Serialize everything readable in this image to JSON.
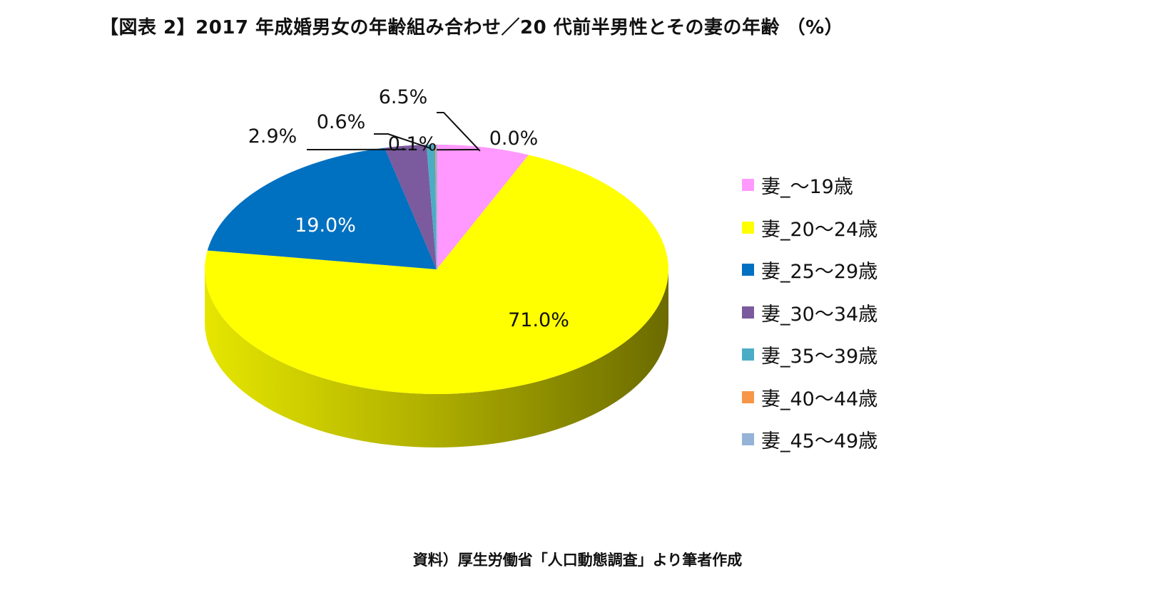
{
  "title": "【図表 2】2017 年成婚男女の年齢組み合わせ／20 代前半男性とその妻の年齢 （%）",
  "source": "資料）厚生労働省「人口動態調査」より筆者作成",
  "chart_data": {
    "type": "pie",
    "style": "3d-tilted",
    "legend_position": "right",
    "start_angle": "12 o'clock, clockwise",
    "slices": [
      {
        "label": "妻_～19歳",
        "value": 6.5,
        "label_text": "6.5%",
        "color": "#FF99FF"
      },
      {
        "label": "妻_20～24歳",
        "value": 71.0,
        "label_text": "71.0%",
        "color": "#FFFF00"
      },
      {
        "label": "妻_25～29歳",
        "value": 19.0,
        "label_text": "19.0%",
        "color": "#0070C0"
      },
      {
        "label": "妻_30～34歳",
        "value": 2.9,
        "label_text": "2.9%",
        "color": "#7B5A9E"
      },
      {
        "label": "妻_35～39歳",
        "value": 0.6,
        "label_text": "0.6%",
        "color": "#4BACC6"
      },
      {
        "label": "妻_40～44歳",
        "value": 0.1,
        "label_text": "0.1%",
        "color": "#F79646"
      },
      {
        "label": "妻_45～49歳",
        "value": 0.0,
        "label_text": "0.0%",
        "color": "#95B3D7"
      }
    ]
  }
}
